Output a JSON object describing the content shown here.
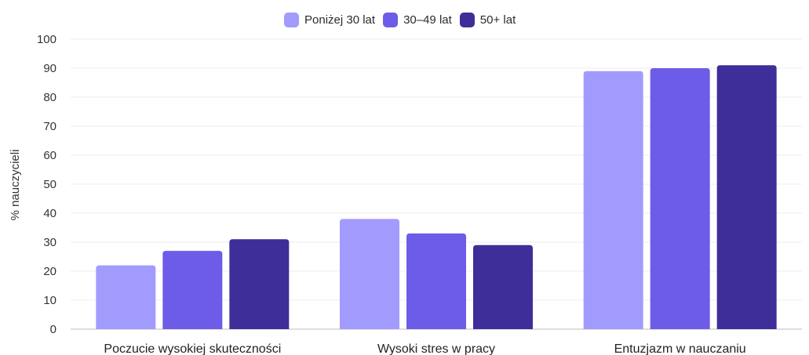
{
  "chart_data": {
    "type": "bar",
    "title": "",
    "xlabel": "",
    "ylabel": "% nauczycieli",
    "ylim": [
      0,
      100
    ],
    "yticks": [
      0,
      10,
      20,
      30,
      40,
      50,
      60,
      70,
      80,
      90,
      100
    ],
    "grid": true,
    "legend_position": "top-center",
    "categories": [
      "Poczucie wysokiej skuteczności",
      "Wysoki stres w pracy",
      "Entuzjazm w nauczaniu"
    ],
    "series": [
      {
        "name": "Poniżej 30 lat",
        "color": "#a29bfe",
        "values": [
          22,
          38,
          89
        ]
      },
      {
        "name": "30–49 lat",
        "color": "#6c5ce7",
        "values": [
          27,
          33,
          90
        ]
      },
      {
        "name": "50+ lat",
        "color": "#3d2e9a",
        "values": [
          31,
          29,
          91
        ]
      }
    ]
  }
}
